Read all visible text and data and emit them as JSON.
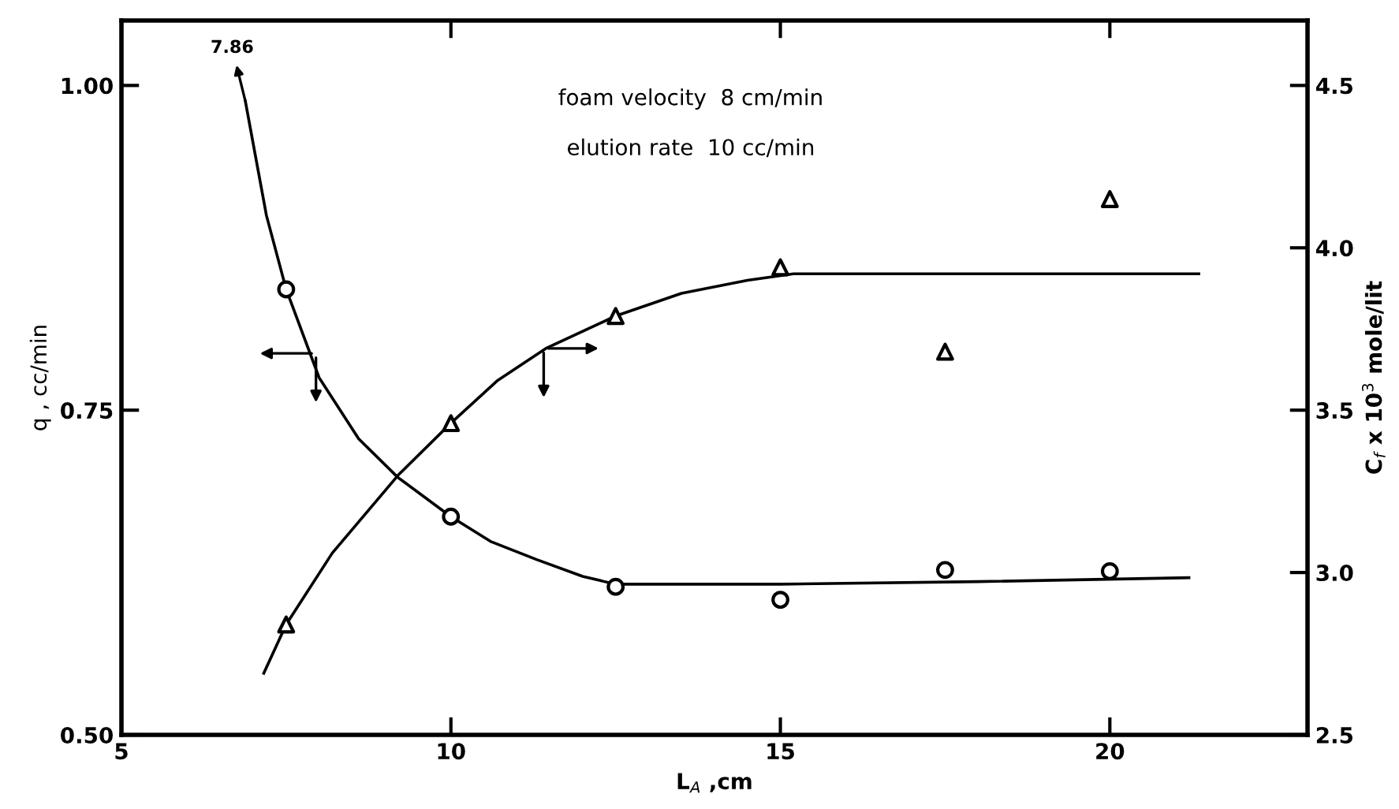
{
  "chart_data": {
    "type": "scatter",
    "xlabel": "L$_{A}$ ,cm",
    "ylabel": "q , cc/min",
    "y2label": "C$_{f}$ x 10$^{3}$ mole/lit",
    "xlim": [
      5,
      23
    ],
    "xticks": [
      5,
      10,
      15,
      20
    ],
    "ylim": [
      0.5,
      1.05
    ],
    "yticks": [
      {
        "value": 0.5,
        "label": "0.50"
      },
      0.75,
      {
        "value": 1.0,
        "label": "1.00"
      }
    ],
    "y2lim": [
      2.5,
      4.7
    ],
    "y2ticks": [
      2.5,
      {
        "value": 3.0,
        "label": "3.0"
      },
      3.5,
      {
        "value": 4.0,
        "label": "4.0"
      },
      4.5
    ],
    "grid": false,
    "legend": false,
    "annotations": [
      "foam velocity  8 cm/min",
      "elution rate  10 cc/min",
      {
        "text": "7.86",
        "x": 6.88,
        "y": 0.988
      }
    ],
    "series": [
      {
        "marker": "circle",
        "color": "#000000",
        "x": [
          7.5,
          10,
          12.5,
          15,
          17.5,
          20
        ],
        "values": [
          0.843,
          0.668,
          0.614,
          0.604,
          0.627,
          0.626
        ]
      },
      {
        "type": "line",
        "marker": "none",
        "line_style": "solid",
        "color": "#000000",
        "x": [
          6.88,
          7.2,
          7.5,
          8.0,
          8.6,
          9.2,
          10,
          10.6,
          11.3,
          12.0,
          12.5,
          13.5,
          15,
          18,
          21.2
        ],
        "values": [
          0.988,
          0.9,
          0.843,
          0.775,
          0.728,
          0.698,
          0.668,
          0.649,
          0.635,
          0.622,
          0.616,
          0.616,
          0.616,
          0.618,
          0.621
        ]
      },
      {
        "marker": "triangle",
        "axis": "y2",
        "color": "#000000",
        "x": [
          7.5,
          10,
          12.5,
          15,
          17.5,
          20
        ],
        "values": [
          2.84,
          3.46,
          3.79,
          3.94,
          3.68,
          4.15
        ]
      },
      {
        "type": "line",
        "marker": "none",
        "line_style": "solid",
        "axis": "y2",
        "color": "#000000",
        "x": [
          7.16,
          7.5,
          8.2,
          9.2,
          10,
          10.7,
          11.44,
          12.5,
          13.5,
          14.5,
          15.2,
          18,
          21.35
        ],
        "values": [
          2.69,
          2.84,
          3.06,
          3.3,
          3.46,
          3.59,
          3.69,
          3.79,
          3.86,
          3.9,
          3.92,
          3.92,
          3.92
        ]
      }
    ]
  }
}
